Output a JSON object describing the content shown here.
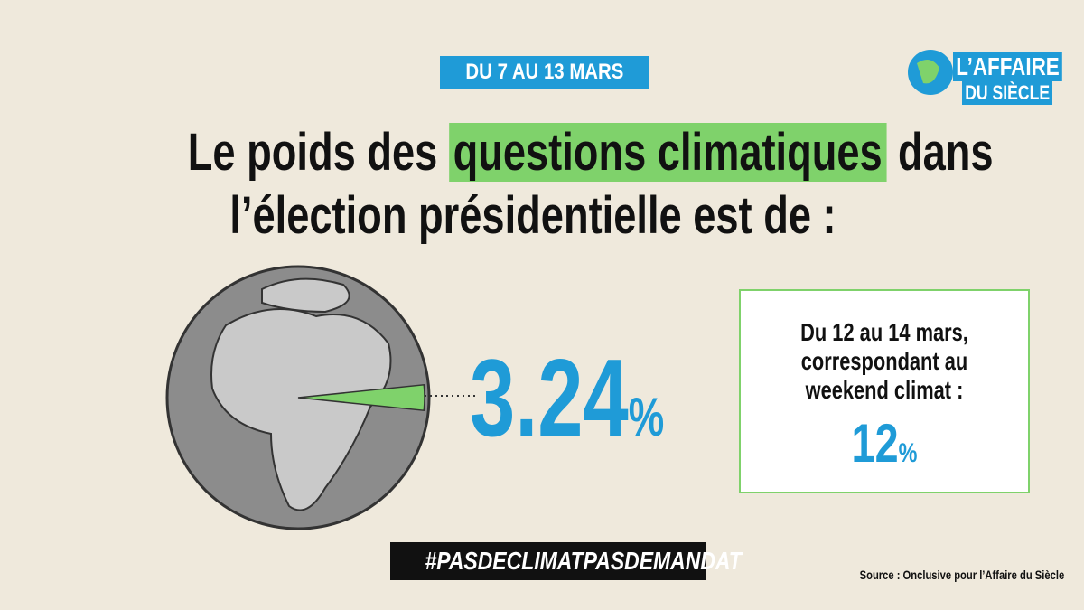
{
  "badge": "DU 7 AU 13 MARS",
  "logo": {
    "line1": "L’AFFAIRE",
    "line2": "DU SIÈCLE"
  },
  "title": {
    "before": "Le poids des",
    "highlight": "questions climatiques",
    "after": "dans",
    "line2": "l’élection présidentielle est de :"
  },
  "main_stat": {
    "value": 3.24,
    "unit": "%"
  },
  "side_box": {
    "lines": [
      "Du 12 au 14 mars,",
      "correspondant au",
      "weekend climat :"
    ],
    "value": 12,
    "unit": "%"
  },
  "hashtag": "#PASDECLIMATPASDEMANDAT",
  "source": "Source : Onclusive pour l’Affaire du Siècle"
}
